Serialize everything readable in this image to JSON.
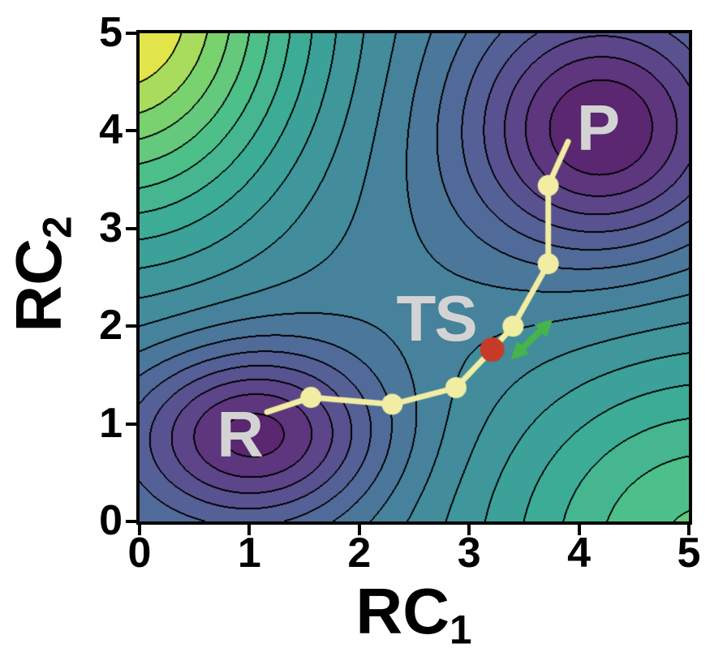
{
  "axes": {
    "xlabel": {
      "base": "RC",
      "sub": "1"
    },
    "ylabel": {
      "base": "RC",
      "sub": "2"
    }
  },
  "chart_data": {
    "type": "contour",
    "title": "",
    "xlabel": "RC_1",
    "ylabel": "RC_2",
    "xlim": [
      0,
      5
    ],
    "ylim": [
      0,
      5
    ],
    "x_ticks": [
      0,
      1,
      2,
      3,
      4,
      5
    ],
    "y_ticks": [
      0,
      1,
      2,
      3,
      4,
      5
    ],
    "grid": false,
    "legend": false,
    "n_contour_bands": 18,
    "contour_line_color": "#000000",
    "colormap": {
      "name": "viridis",
      "stops": [
        "#440154",
        "#482878",
        "#3e4a89",
        "#31688e",
        "#26828e",
        "#1f9e89",
        "#35b779",
        "#6ece58",
        "#fde725"
      ],
      "white_blend": 0.12
    },
    "surface_model_estimate": {
      "form": "V(x,y) = sum_i a_i * exp(-((x-cx_i)^2/(2*sx_i^2) + (y-cy_i)^2/(2*sy_i^2)))",
      "terms": [
        {
          "cx": -0.2,
          "cy": 5.3,
          "a": 3.4,
          "sx": 1.25,
          "sy": 1.7
        },
        {
          "cx": 5.2,
          "cy": -0.3,
          "a": 2.2,
          "sx": 1.6,
          "sy": 1.6
        },
        {
          "cx": 1.05,
          "cy": 0.9,
          "a": -2.0,
          "sx": 0.8,
          "sy": 0.63
        },
        {
          "cx": 4.2,
          "cy": 4.0,
          "a": -2.1,
          "sx": 0.85,
          "sy": 0.9
        }
      ]
    },
    "reaction_path": {
      "color": "#f1eea3",
      "line_width": 7,
      "marker_radius": 13,
      "points": [
        {
          "x": 1.16,
          "y": 1.12,
          "marker": "none"
        },
        {
          "x": 1.56,
          "y": 1.27,
          "marker": "dot"
        },
        {
          "x": 2.3,
          "y": 1.2,
          "marker": "dot"
        },
        {
          "x": 2.88,
          "y": 1.37,
          "marker": "dot"
        },
        {
          "x": 3.21,
          "y": 1.76,
          "marker": "ts"
        },
        {
          "x": 3.4,
          "y": 2.0,
          "marker": "dot"
        },
        {
          "x": 3.72,
          "y": 2.64,
          "marker": "dot"
        },
        {
          "x": 3.72,
          "y": 3.44,
          "marker": "dot"
        },
        {
          "x": 3.9,
          "y": 3.89,
          "marker": "none"
        }
      ]
    },
    "ts_marker": {
      "x": 3.21,
      "y": 1.76,
      "color": "#c53b28",
      "radius": 15
    },
    "mode_arrow": {
      "x1": 3.38,
      "y1": 1.66,
      "x2": 3.76,
      "y2": 2.07,
      "color": "#47b44b"
    },
    "point_labels": [
      {
        "text": "R",
        "x": 0.91,
        "y": 0.93,
        "color": "#d3d3d3"
      },
      {
        "text": "TS",
        "x": 2.7,
        "y": 2.12,
        "color": "#d3d3d3"
      },
      {
        "text": "P",
        "x": 4.17,
        "y": 4.07,
        "color": "#d3d3d3"
      }
    ]
  }
}
